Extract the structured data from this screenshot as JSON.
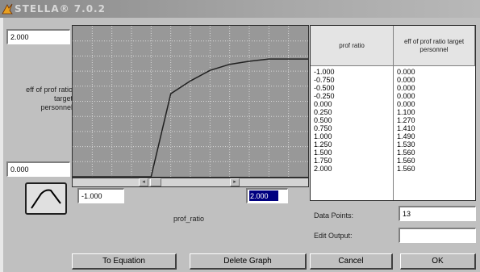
{
  "window": {
    "title": "STELLA® 7.0.2"
  },
  "graph": {
    "y_max": "2.000",
    "y_min": "0.000",
    "x_min": "-1.000",
    "x_max": "2.000",
    "y_label": "eff of prof ratio target personnel",
    "x_label": "prof_ratio"
  },
  "chart_data": {
    "type": "line",
    "x": [
      -1.0,
      -0.75,
      -0.5,
      -0.25,
      0.0,
      0.25,
      0.5,
      0.75,
      1.0,
      1.25,
      1.5,
      1.75,
      2.0
    ],
    "y": [
      0.0,
      0.0,
      0.0,
      0.0,
      0.0,
      1.1,
      1.27,
      1.41,
      1.49,
      1.53,
      1.56,
      1.56,
      1.56
    ],
    "xlim": [
      -1.0,
      2.0
    ],
    "ylim": [
      0.0,
      2.0
    ],
    "grid": true
  },
  "table": {
    "col1_header": "prof ratio",
    "col2_header": "eff of prof ratio target personnel",
    "inputs": [
      "-1.000",
      "-0.750",
      "-0.500",
      "-0.250",
      "0.000",
      "0.250",
      "0.500",
      "0.750",
      "1.000",
      "1.250",
      "1.500",
      "1.750",
      "2.000"
    ],
    "outputs": [
      "0.000",
      "0.000",
      "0.000",
      "0.000",
      "0.000",
      "1.100",
      "1.270",
      "1.410",
      "1.490",
      "1.530",
      "1.560",
      "1.560",
      "1.560"
    ]
  },
  "data_points": {
    "label": "Data Points:",
    "value": "13"
  },
  "edit_output": {
    "label": "Edit Output:",
    "value": ""
  },
  "buttons": {
    "to_equation": "To Equation",
    "delete_graph": "Delete Graph",
    "cancel": "Cancel",
    "ok": "OK"
  },
  "colors": {
    "grid_bg": "#989898",
    "curve": "#202020",
    "selection": "#000080"
  },
  "icons": {
    "title_icon": "stella-logo-icon",
    "graph_shape": "curve-shape-icon"
  }
}
